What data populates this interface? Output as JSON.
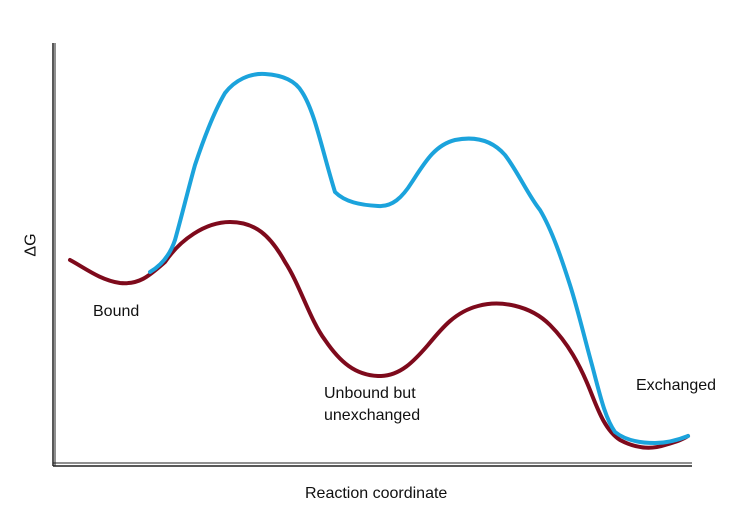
{
  "axes": {
    "x_label": "Reaction coordinate",
    "y_label": "ΔG"
  },
  "colors": {
    "upper_curve": "#1ba3dc",
    "lower_curve": "#7e0a1c",
    "axis": "#222222"
  },
  "states": {
    "bound": "Bound",
    "unbound_line1": "Unbound but",
    "unbound_line2": "unexchanged",
    "exchanged": "Exchanged"
  }
}
